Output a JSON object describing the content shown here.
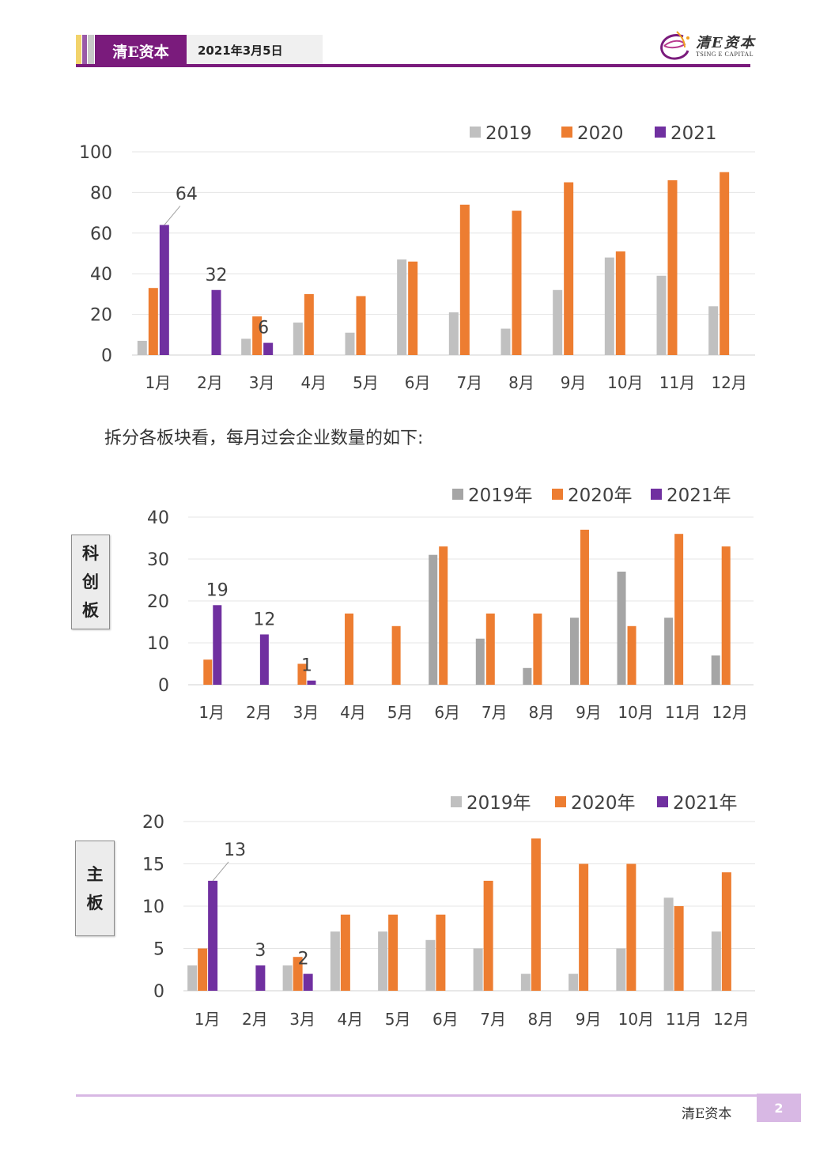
{
  "header": {
    "brand": "清E资本",
    "date": "2021年3月5日",
    "logo_cn": "清E资本",
    "logo_en": "TSING E CAPITAL"
  },
  "body": {
    "paragraph": "拆分各板块看，每月过会企业数量的如下:"
  },
  "labels": {
    "kcb": [
      "科",
      "创",
      "板"
    ],
    "main": [
      "主",
      "板"
    ]
  },
  "footer": {
    "brand": "清E资本",
    "page": "2"
  },
  "colors": {
    "gray": "#c0c0c0",
    "gray_dark": "#a5a5a5",
    "orange": "#ed7d31",
    "purple": "#7030a0"
  },
  "chart_data": [
    {
      "type": "bar",
      "categories": [
        "1月",
        "2月",
        "3月",
        "4月",
        "5月",
        "6月",
        "7月",
        "8月",
        "9月",
        "10月",
        "11月",
        "12月"
      ],
      "series": [
        {
          "name": "2019",
          "values": [
            7,
            null,
            8,
            16,
            11,
            47,
            21,
            13,
            32,
            48,
            39,
            24
          ]
        },
        {
          "name": "2020",
          "values": [
            33,
            null,
            19,
            30,
            29,
            46,
            74,
            71,
            85,
            51,
            86,
            90
          ]
        },
        {
          "name": "2021",
          "values": [
            64,
            32,
            6,
            null,
            null,
            null,
            null,
            null,
            null,
            null,
            null,
            null
          ]
        }
      ],
      "ylim": [
        0,
        100
      ],
      "yticks": [
        0,
        20,
        40,
        60,
        80,
        100
      ],
      "data_labels": [
        {
          "series": "2021",
          "index": 0,
          "text": "64"
        },
        {
          "series": "2021",
          "index": 1,
          "text": "32"
        },
        {
          "series": "2021",
          "index": 2,
          "text": "6"
        }
      ],
      "legend": "top-right",
      "grid": true
    },
    {
      "type": "bar",
      "categories": [
        "1月",
        "2月",
        "3月",
        "4月",
        "5月",
        "6月",
        "7月",
        "8月",
        "9月",
        "10月",
        "11月",
        "12月"
      ],
      "series": [
        {
          "name": "2019年",
          "values": [
            null,
            null,
            null,
            null,
            null,
            31,
            11,
            4,
            16,
            27,
            16,
            7
          ]
        },
        {
          "name": "2020年",
          "values": [
            6,
            null,
            5,
            17,
            14,
            33,
            17,
            17,
            37,
            14,
            36,
            33
          ]
        },
        {
          "name": "2021年",
          "values": [
            19,
            12,
            1,
            null,
            null,
            null,
            null,
            null,
            null,
            null,
            null,
            null
          ]
        }
      ],
      "ylim": [
        0,
        40
      ],
      "yticks": [
        0,
        10,
        20,
        30,
        40
      ],
      "data_labels": [
        {
          "series": "2021年",
          "index": 0,
          "text": "19"
        },
        {
          "series": "2021年",
          "index": 1,
          "text": "12"
        },
        {
          "series": "2021年",
          "index": 2,
          "text": "1"
        }
      ],
      "legend": "top-right",
      "grid": true
    },
    {
      "type": "bar",
      "categories": [
        "1月",
        "2月",
        "3月",
        "4月",
        "5月",
        "6月",
        "7月",
        "8月",
        "9月",
        "10月",
        "11月",
        "12月"
      ],
      "series": [
        {
          "name": "2019年",
          "values": [
            3,
            null,
            3,
            7,
            7,
            6,
            5,
            2,
            2,
            5,
            11,
            7
          ]
        },
        {
          "name": "2020年",
          "values": [
            5,
            null,
            4,
            9,
            9,
            9,
            13,
            18,
            15,
            15,
            10,
            14
          ]
        },
        {
          "name": "2021年",
          "values": [
            13,
            3,
            2,
            null,
            null,
            null,
            null,
            null,
            null,
            null,
            null,
            null
          ]
        }
      ],
      "ylim": [
        0,
        20
      ],
      "yticks": [
        0,
        5,
        10,
        15,
        20
      ],
      "data_labels": [
        {
          "series": "2021年",
          "index": 0,
          "text": "13"
        },
        {
          "series": "2021年",
          "index": 1,
          "text": "3"
        },
        {
          "series": "2021年",
          "index": 2,
          "text": "2"
        }
      ],
      "legend": "top-right",
      "grid": true
    }
  ]
}
